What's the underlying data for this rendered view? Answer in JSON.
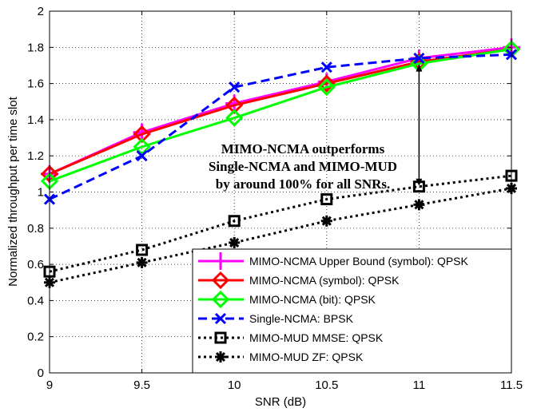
{
  "chart_data": {
    "type": "line",
    "title": "",
    "xlabel": "SNR (dB)",
    "ylabel": "Normalized throughput per time slot",
    "xlim": [
      9,
      11.5
    ],
    "ylim": [
      0,
      2
    ],
    "xticks": [
      "9",
      "9.5",
      "10",
      "10.5",
      "11",
      "11.5"
    ],
    "yticks": [
      "0",
      "0.2",
      "0.4",
      "0.6",
      "0.8",
      "1",
      "1.2",
      "1.4",
      "1.6",
      "1.8",
      "2"
    ],
    "grid": true,
    "legend_position": "bottom-right",
    "x": [
      9,
      9.5,
      10,
      10.5,
      11,
      11.5
    ],
    "series": [
      {
        "name": "MIMO-NCMA Upper Bound (symbol): QPSK",
        "color": "#ff00ff",
        "dash": "solid",
        "marker": "plus",
        "values": [
          1.1,
          1.33,
          1.49,
          1.61,
          1.74,
          1.8
        ]
      },
      {
        "name": "MIMO-NCMA (symbol): QPSK",
        "color": "#ff0000",
        "dash": "solid",
        "marker": "diamond",
        "values": [
          1.1,
          1.32,
          1.48,
          1.6,
          1.72,
          1.79
        ]
      },
      {
        "name": "MIMO-NCMA (bit): QPSK",
        "color": "#00ff00",
        "dash": "solid",
        "marker": "diamond",
        "values": [
          1.06,
          1.25,
          1.41,
          1.58,
          1.71,
          1.79
        ]
      },
      {
        "name": "Single-NCMA: BPSK",
        "color": "#0000ff",
        "dash": "dashed",
        "marker": "x",
        "values": [
          0.96,
          1.2,
          1.58,
          1.69,
          1.74,
          1.76
        ]
      },
      {
        "name": "MIMO-MUD MMSE: QPSK",
        "color": "#000000",
        "dash": "dotted",
        "marker": "square",
        "values": [
          0.56,
          0.68,
          0.84,
          0.96,
          1.03,
          1.09
        ]
      },
      {
        "name": "MIMO-MUD ZF: QPSK",
        "color": "#000000",
        "dash": "dotted",
        "marker": "asterisk",
        "values": [
          0.5,
          0.61,
          0.72,
          0.84,
          0.93,
          1.02
        ]
      }
    ],
    "annotation": {
      "lines": [
        "MIMO-NCMA outperforms",
        "Single-NCMA and MIMO-MUD",
        "by around 100% for all SNRs."
      ],
      "arrow_x": 11,
      "arrow_from": 1.03,
      "arrow_to": 1.71
    }
  }
}
